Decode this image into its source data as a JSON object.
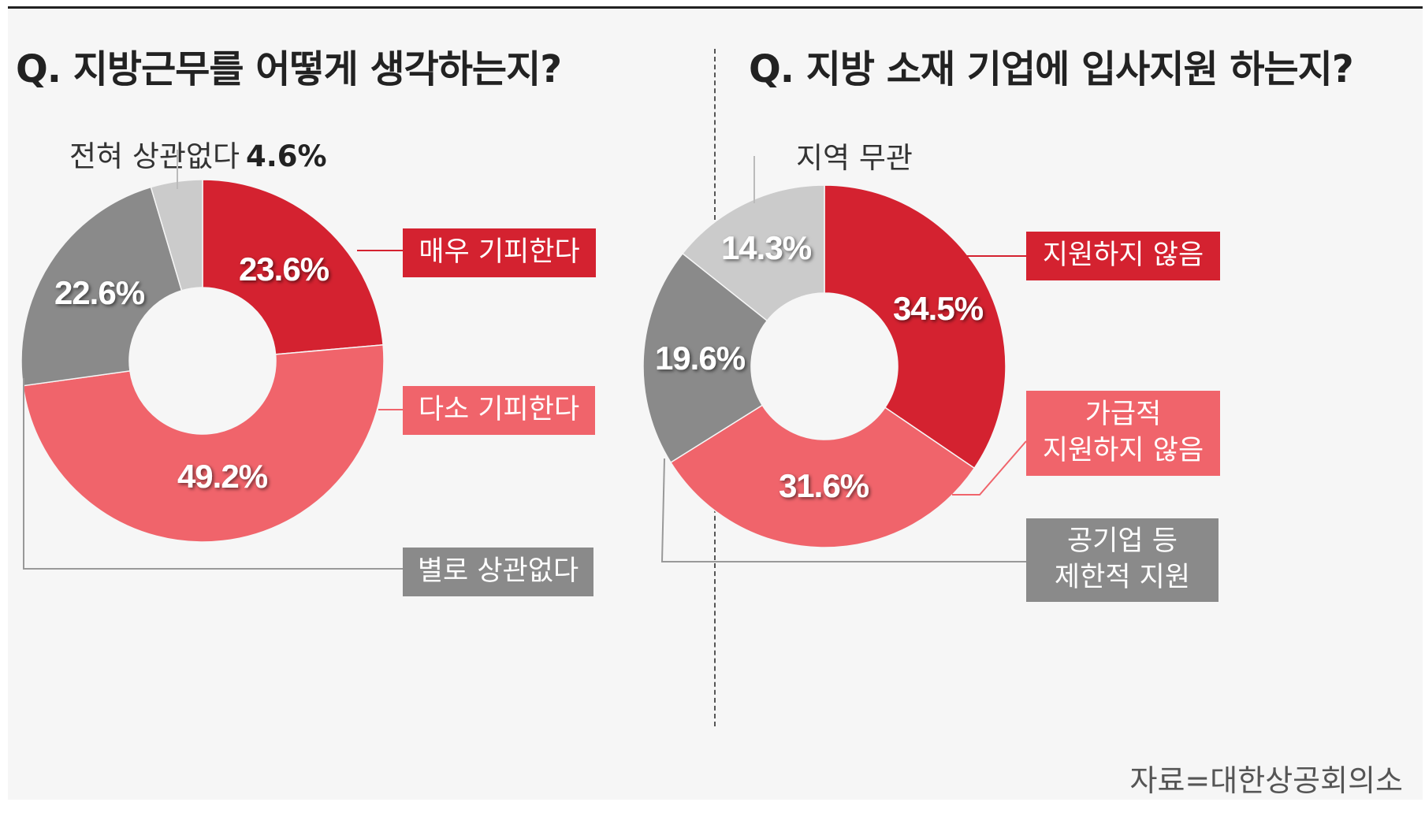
{
  "colors": {
    "dark_red": "#d42230",
    "light_red": "#f0646b",
    "dark_gray": "#8a8a8a",
    "light_gray": "#cbcbcb"
  },
  "chart_data": [
    {
      "type": "pie",
      "title": "Q. 지방근무를 어떻게 생각하는지?",
      "slices": [
        {
          "label": "매우 기피한다",
          "value": 23.6,
          "display": "23.6%",
          "color": "#d42230"
        },
        {
          "label": "다소 기피한다",
          "value": 49.2,
          "display": "49.2%",
          "color": "#f0646b"
        },
        {
          "label": "별로 상관없다",
          "value": 22.6,
          "display": "22.6%",
          "color": "#8a8a8a"
        },
        {
          "label": "전혀 상관없다",
          "value": 4.6,
          "display": "4.6%",
          "color": "#cbcbcb"
        }
      ]
    },
    {
      "type": "pie",
      "title": "Q. 지방 소재 기업에 입사지원 하는지?",
      "slices": [
        {
          "label": "지원하지 않음",
          "value": 34.5,
          "display": "34.5%",
          "color": "#d42230"
        },
        {
          "label": "가급적 지원하지 않음",
          "label_lines": [
            "가급적",
            "지원하지 않음"
          ],
          "value": 31.6,
          "display": "31.6%",
          "color": "#f0646b"
        },
        {
          "label": "공기업 등 제한적 지원",
          "label_lines": [
            "공기업 등",
            "제한적 지원"
          ],
          "value": 19.6,
          "display": "19.6%",
          "color": "#8a8a8a"
        },
        {
          "label": "지역 무관",
          "value": 14.3,
          "display": "14.3%",
          "color": "#cbcbcb"
        }
      ]
    }
  ],
  "source": "자료=대한상공회의소"
}
